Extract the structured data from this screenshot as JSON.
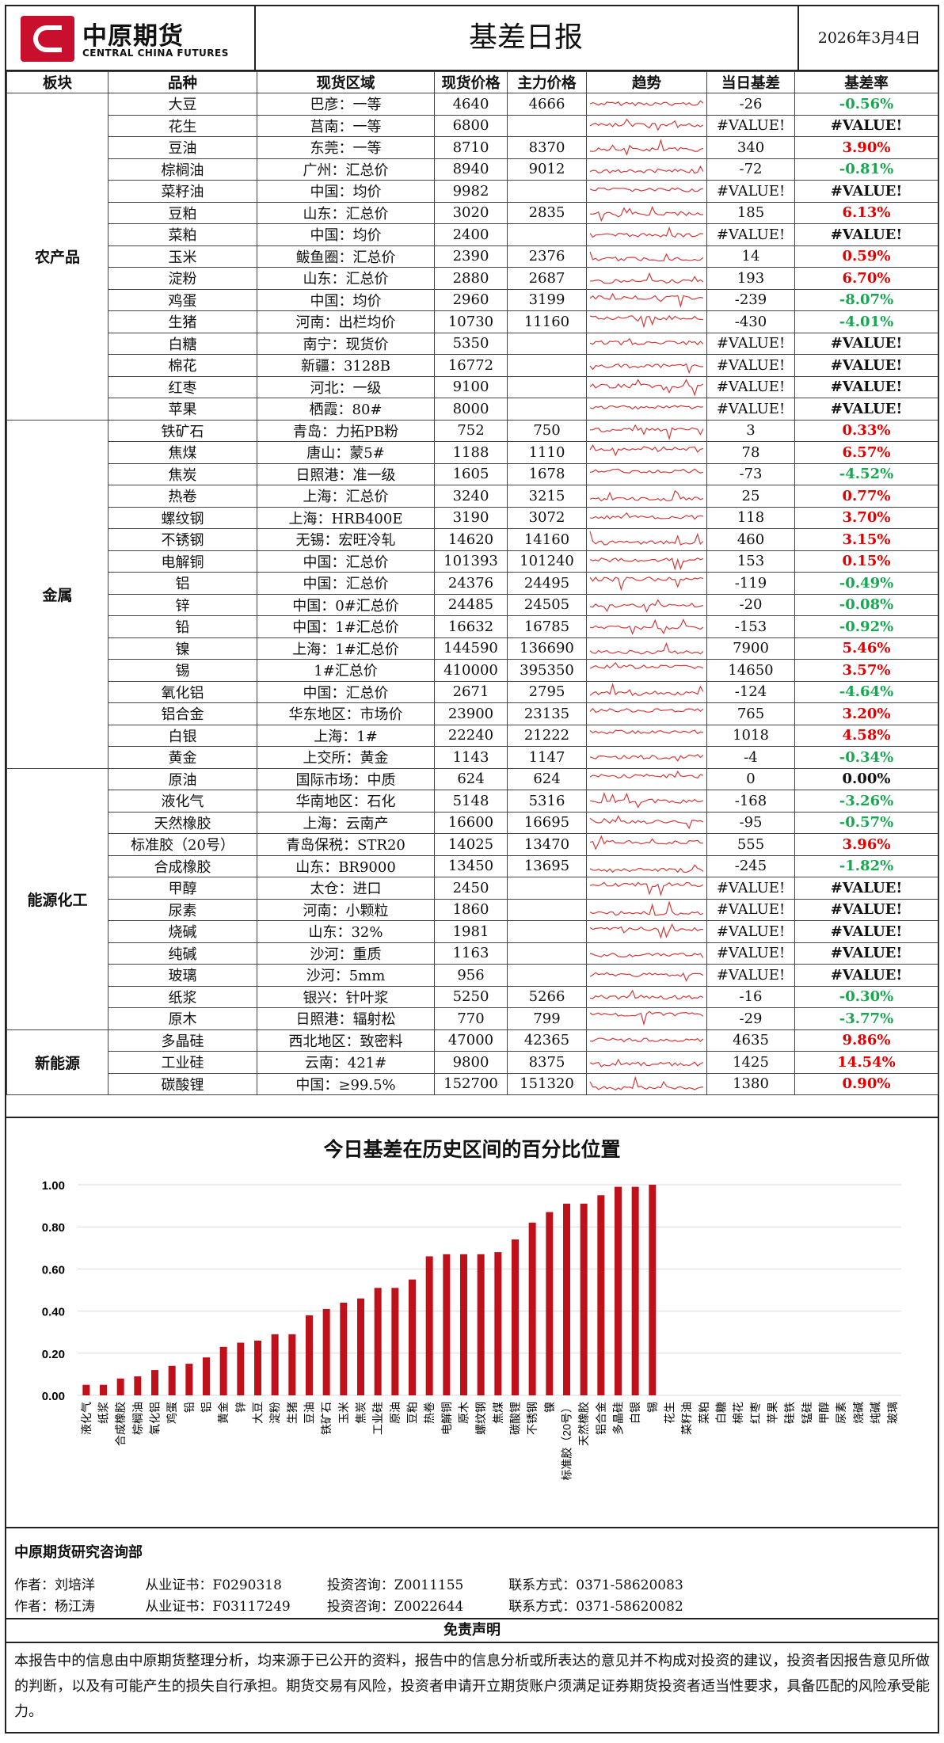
{
  "header": {
    "logo_cn": "中原期货",
    "logo_en": "CENTRAL CHINA FUTURES",
    "title": "基差日报",
    "date": "2026年3月4日"
  },
  "table": {
    "headers": [
      "板块",
      "品种",
      "现货区域",
      "现货价格",
      "主力价格",
      "趋势",
      "当日基差",
      "基差率"
    ],
    "sections": [
      {
        "name": "农产品",
        "rows": [
          {
            "variety": "大豆",
            "region": "巴彦：一等",
            "spot": "4640",
            "main": "4666",
            "basis": "-26",
            "rate": "-0.56%",
            "sign": "neg"
          },
          {
            "variety": "花生",
            "region": "莒南：一等",
            "spot": "6800",
            "main": "",
            "basis": "#VALUE!",
            "rate": "#VALUE!",
            "sign": "err"
          },
          {
            "variety": "豆油",
            "region": "东莞：一等",
            "spot": "8710",
            "main": "8370",
            "basis": "340",
            "rate": "3.90%",
            "sign": "pos"
          },
          {
            "variety": "棕榈油",
            "region": "广州：汇总价",
            "spot": "8940",
            "main": "9012",
            "basis": "-72",
            "rate": "-0.81%",
            "sign": "neg"
          },
          {
            "variety": "菜籽油",
            "region": "中国：均价",
            "spot": "9982",
            "main": "",
            "basis": "#VALUE!",
            "rate": "#VALUE!",
            "sign": "err"
          },
          {
            "variety": "豆粕",
            "region": "山东：汇总价",
            "spot": "3020",
            "main": "2835",
            "basis": "185",
            "rate": "6.13%",
            "sign": "pos"
          },
          {
            "variety": "菜粕",
            "region": "中国：均价",
            "spot": "2400",
            "main": "",
            "basis": "#VALUE!",
            "rate": "#VALUE!",
            "sign": "err"
          },
          {
            "variety": "玉米",
            "region": "鲅鱼圈：汇总价",
            "spot": "2390",
            "main": "2376",
            "basis": "14",
            "rate": "0.59%",
            "sign": "pos"
          },
          {
            "variety": "淀粉",
            "region": "山东：汇总价",
            "spot": "2880",
            "main": "2687",
            "basis": "193",
            "rate": "6.70%",
            "sign": "pos"
          },
          {
            "variety": "鸡蛋",
            "region": "中国：均价",
            "spot": "2960",
            "main": "3199",
            "basis": "-239",
            "rate": "-8.07%",
            "sign": "neg"
          },
          {
            "variety": "生猪",
            "region": "河南：出栏均价",
            "spot": "10730",
            "main": "11160",
            "basis": "-430",
            "rate": "-4.01%",
            "sign": "neg"
          },
          {
            "variety": "白糖",
            "region": "南宁：现货价",
            "spot": "5350",
            "main": "",
            "basis": "#VALUE!",
            "rate": "#VALUE!",
            "sign": "err"
          },
          {
            "variety": "棉花",
            "region": "新疆：3128B",
            "spot": "16772",
            "main": "",
            "basis": "#VALUE!",
            "rate": "#VALUE!",
            "sign": "err"
          },
          {
            "variety": "红枣",
            "region": "河北：一级",
            "spot": "9100",
            "main": "",
            "basis": "#VALUE!",
            "rate": "#VALUE!",
            "sign": "err"
          },
          {
            "variety": "苹果",
            "region": "栖霞：80#",
            "spot": "8000",
            "main": "",
            "basis": "#VALUE!",
            "rate": "#VALUE!",
            "sign": "err"
          }
        ]
      },
      {
        "name": "金属",
        "rows": [
          {
            "variety": "铁矿石",
            "region": "青岛：力拓PB粉",
            "spot": "752",
            "main": "750",
            "basis": "3",
            "rate": "0.33%",
            "sign": "pos"
          },
          {
            "variety": "焦煤",
            "region": "唐山：蒙5#",
            "spot": "1188",
            "main": "1110",
            "basis": "78",
            "rate": "6.57%",
            "sign": "pos"
          },
          {
            "variety": "焦炭",
            "region": "日照港：准一级",
            "spot": "1605",
            "main": "1678",
            "basis": "-73",
            "rate": "-4.52%",
            "sign": "neg"
          },
          {
            "variety": "热卷",
            "region": "上海：汇总价",
            "spot": "3240",
            "main": "3215",
            "basis": "25",
            "rate": "0.77%",
            "sign": "pos"
          },
          {
            "variety": "螺纹钢",
            "region": "上海：HRB400E",
            "spot": "3190",
            "main": "3072",
            "basis": "118",
            "rate": "3.70%",
            "sign": "pos"
          },
          {
            "variety": "不锈钢",
            "region": "无锡：宏旺冷轧",
            "spot": "14620",
            "main": "14160",
            "basis": "460",
            "rate": "3.15%",
            "sign": "pos"
          },
          {
            "variety": "电解铜",
            "region": "中国：汇总价",
            "spot": "101393",
            "main": "101240",
            "basis": "153",
            "rate": "0.15%",
            "sign": "pos"
          },
          {
            "variety": "铝",
            "region": "中国：汇总价",
            "spot": "24376",
            "main": "24495",
            "basis": "-119",
            "rate": "-0.49%",
            "sign": "neg"
          },
          {
            "variety": "锌",
            "region": "中国：0#汇总价",
            "spot": "24485",
            "main": "24505",
            "basis": "-20",
            "rate": "-0.08%",
            "sign": "neg"
          },
          {
            "variety": "铅",
            "region": "中国：1#汇总价",
            "spot": "16632",
            "main": "16785",
            "basis": "-153",
            "rate": "-0.92%",
            "sign": "neg"
          },
          {
            "variety": "镍",
            "region": "上海：1#汇总价",
            "spot": "144590",
            "main": "136690",
            "basis": "7900",
            "rate": "5.46%",
            "sign": "pos"
          },
          {
            "variety": "锡",
            "region": "1#汇总价",
            "spot": "410000",
            "main": "395350",
            "basis": "14650",
            "rate": "3.57%",
            "sign": "pos"
          },
          {
            "variety": "氧化铝",
            "region": "中国：汇总价",
            "spot": "2671",
            "main": "2795",
            "basis": "-124",
            "rate": "-4.64%",
            "sign": "neg"
          },
          {
            "variety": "铝合金",
            "region": "华东地区：市场价",
            "spot": "23900",
            "main": "23135",
            "basis": "765",
            "rate": "3.20%",
            "sign": "pos"
          },
          {
            "variety": "白银",
            "region": "上海：1#",
            "spot": "22240",
            "main": "21222",
            "basis": "1018",
            "rate": "4.58%",
            "sign": "pos"
          },
          {
            "variety": "黄金",
            "region": "上交所：黄金",
            "spot": "1143",
            "main": "1147",
            "basis": "-4",
            "rate": "-0.34%",
            "sign": "neg"
          }
        ]
      },
      {
        "name": "能源化工",
        "rows": [
          {
            "variety": "原油",
            "region": "国际市场：中质",
            "spot": "624",
            "main": "624",
            "basis": "0",
            "rate": "0.00%",
            "sign": "zero"
          },
          {
            "variety": "液化气",
            "region": "华南地区：石化",
            "spot": "5148",
            "main": "5316",
            "basis": "-168",
            "rate": "-3.26%",
            "sign": "neg"
          },
          {
            "variety": "天然橡胶",
            "region": "上海：云南产",
            "spot": "16600",
            "main": "16695",
            "basis": "-95",
            "rate": "-0.57%",
            "sign": "neg"
          },
          {
            "variety": "标准胶（20号）",
            "region": "青岛保税：STR20",
            "spot": "14025",
            "main": "13470",
            "basis": "555",
            "rate": "3.96%",
            "sign": "pos"
          },
          {
            "variety": "合成橡胶",
            "region": "山东：BR9000",
            "spot": "13450",
            "main": "13695",
            "basis": "-245",
            "rate": "-1.82%",
            "sign": "neg"
          },
          {
            "variety": "甲醇",
            "region": "太仓：进口",
            "spot": "2450",
            "main": "",
            "basis": "#VALUE!",
            "rate": "#VALUE!",
            "sign": "err"
          },
          {
            "variety": "尿素",
            "region": "河南：小颗粒",
            "spot": "1860",
            "main": "",
            "basis": "#VALUE!",
            "rate": "#VALUE!",
            "sign": "err"
          },
          {
            "variety": "烧碱",
            "region": "山东：32%",
            "spot": "1981",
            "main": "",
            "basis": "#VALUE!",
            "rate": "#VALUE!",
            "sign": "err"
          },
          {
            "variety": "纯碱",
            "region": "沙河：重质",
            "spot": "1163",
            "main": "",
            "basis": "#VALUE!",
            "rate": "#VALUE!",
            "sign": "err"
          },
          {
            "variety": "玻璃",
            "region": "沙河：5mm",
            "spot": "956",
            "main": "",
            "basis": "#VALUE!",
            "rate": "#VALUE!",
            "sign": "err"
          },
          {
            "variety": "纸浆",
            "region": "银兴：针叶浆",
            "spot": "5250",
            "main": "5266",
            "basis": "-16",
            "rate": "-0.30%",
            "sign": "neg"
          },
          {
            "variety": "原木",
            "region": "日照港：辐射松",
            "spot": "770",
            "main": "799",
            "basis": "-29",
            "rate": "-3.77%",
            "sign": "neg"
          }
        ]
      },
      {
        "name": "新能源",
        "rows": [
          {
            "variety": "多晶硅",
            "region": "西北地区：致密料",
            "spot": "47000",
            "main": "42365",
            "basis": "4635",
            "rate": "9.86%",
            "sign": "pos"
          },
          {
            "variety": "工业硅",
            "region": "云南：421#",
            "spot": "9800",
            "main": "8375",
            "basis": "1425",
            "rate": "14.54%",
            "sign": "pos"
          },
          {
            "variety": "碳酸锂",
            "region": "中国：≥99.5%",
            "spot": "152700",
            "main": "151320",
            "basis": "1380",
            "rate": "0.90%",
            "sign": "pos"
          }
        ]
      }
    ]
  },
  "colors": {
    "positive": "#e00000",
    "negative": "#17a84f",
    "sparkline": "#d23b3b",
    "bar": "#c0101a",
    "brand": "#c8102e"
  },
  "chart_data": {
    "type": "bar",
    "title": "今日基差在历史区间的百分比位置",
    "categories": [
      "液化气",
      "纸浆",
      "合成橡胶",
      "棕榈油",
      "氧化铝",
      "鸡蛋",
      "铅",
      "铝",
      "黄金",
      "锌",
      "大豆",
      "淀粉",
      "生猪",
      "豆油",
      "铁矿石",
      "玉米",
      "焦炭",
      "工业硅",
      "原油",
      "豆粕",
      "热卷",
      "电解铜",
      "原木",
      "螺纹钢",
      "焦煤",
      "碳酸锂",
      "不锈钢",
      "镍",
      "标准胶（20号）",
      "天然橡胶",
      "铝合金",
      "多晶硅",
      "白银",
      "锡",
      "花生",
      "菜籽油",
      "菜粕",
      "白糖",
      "棉花",
      "红枣",
      "苹果",
      "硅铁",
      "锰硅",
      "甲醇",
      "尿素",
      "烧碱",
      "纯碱",
      "玻璃"
    ],
    "values": [
      0.05,
      0.05,
      0.08,
      0.09,
      0.12,
      0.14,
      0.15,
      0.18,
      0.23,
      0.25,
      0.26,
      0.29,
      0.29,
      0.38,
      0.41,
      0.44,
      0.46,
      0.51,
      0.51,
      0.55,
      0.66,
      0.67,
      0.67,
      0.67,
      0.68,
      0.74,
      0.82,
      0.87,
      0.91,
      0.91,
      0.95,
      0.99,
      0.99,
      1.0,
      null,
      null,
      null,
      null,
      null,
      null,
      null,
      null,
      null,
      null,
      null,
      null,
      null,
      null
    ],
    "ylim": [
      0,
      1.0
    ],
    "yticks": [
      "0.00",
      "0.20",
      "0.40",
      "0.60",
      "0.80",
      "1.00"
    ],
    "grid": true
  },
  "footer": {
    "dept": "中原期货研究咨询部",
    "authors": [
      {
        "author": "作者：刘培洋",
        "cert": "从业证书：F0290318",
        "consult": "投资咨询：Z0011155",
        "contact": "联系方式：0371-58620083"
      },
      {
        "author": "作者：杨江涛",
        "cert": "从业证书：F03117249",
        "consult": "投资咨询：Z0022644",
        "contact": "联系方式：0371-58620082"
      }
    ],
    "disclaimer_title": "免责声明",
    "disclaimer": "本报告中的信息由中原期货整理分析，均来源于已公开的资料，报告中的信息分析或所表达的意见并不构成对投资的建议，投资者因报告意见所做的判断，以及有可能产生的损失自行承担。期货交易有风险，投资者申请开立期货账户须满足证券期货投资者适当性要求，具备匹配的风险承受能力。"
  }
}
